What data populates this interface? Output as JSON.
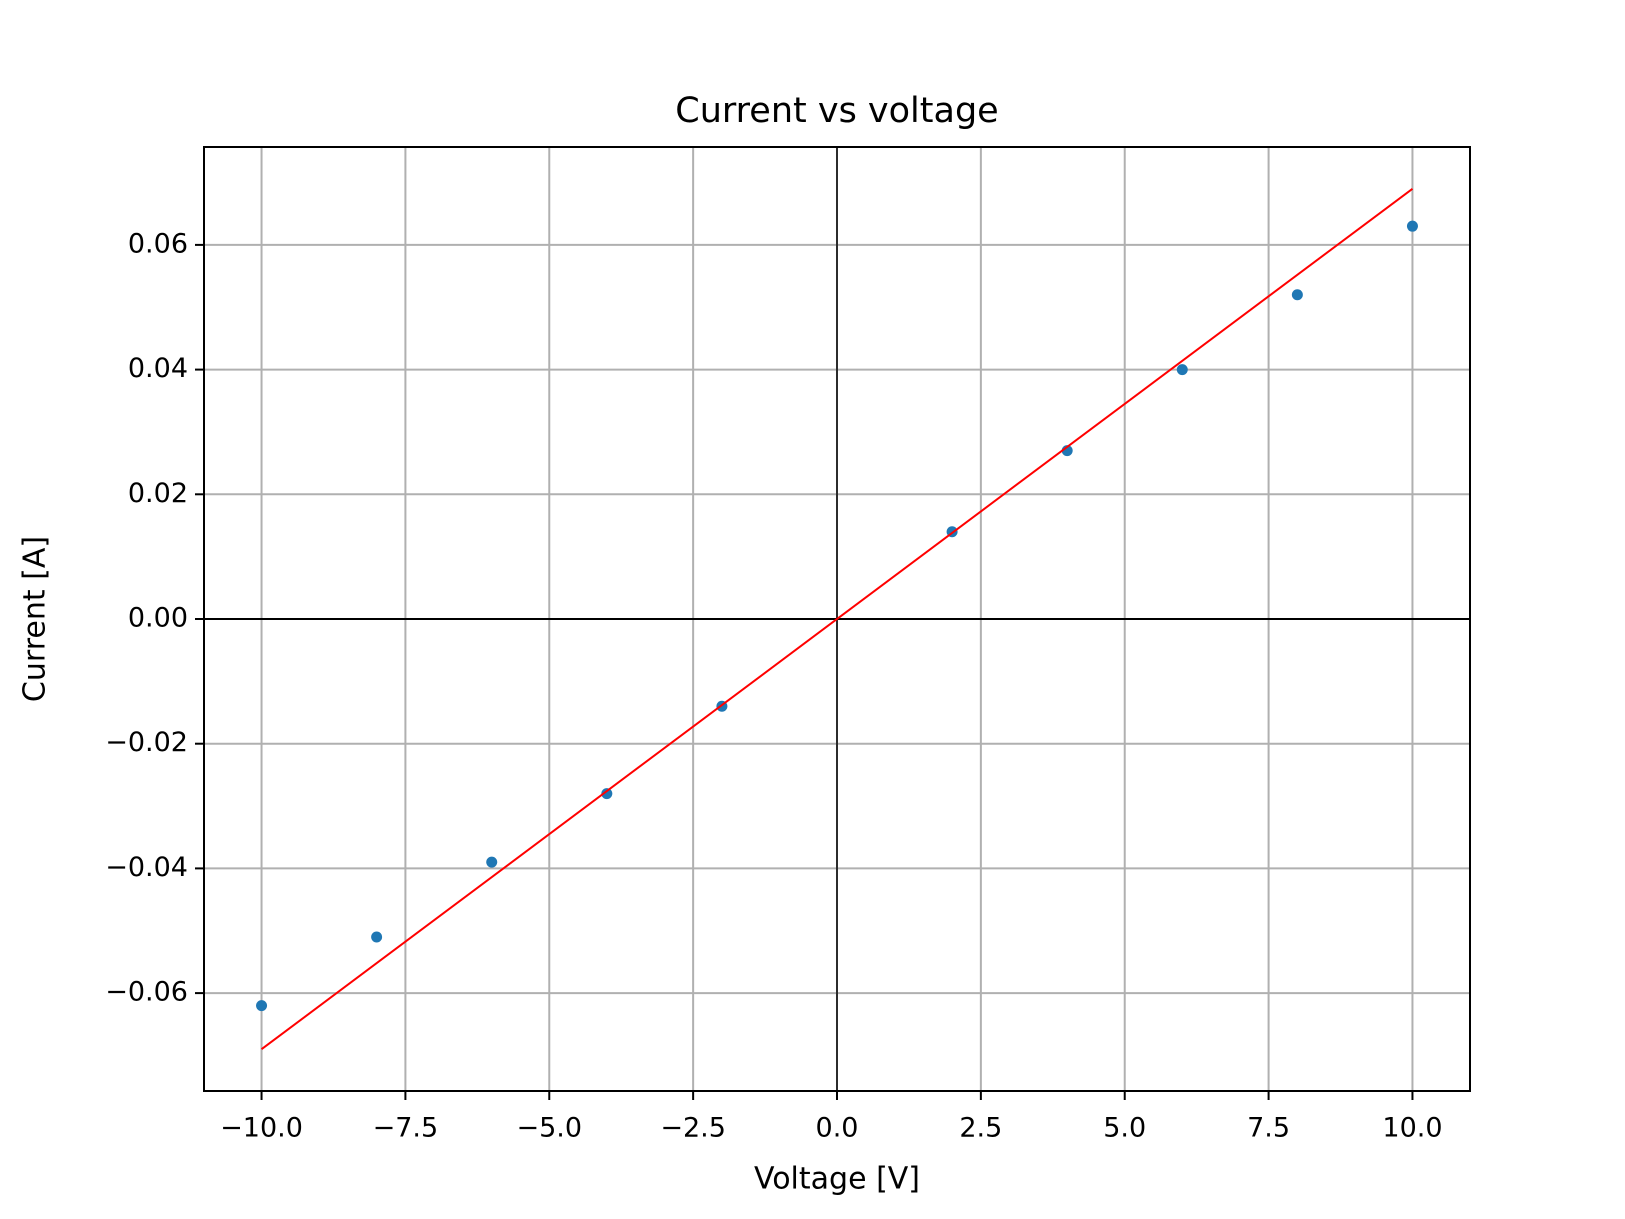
{
  "chart_data": {
    "type": "scatter",
    "title": "Current vs voltage",
    "x_label": "Voltage [V]",
    "y_label": "Current [A]",
    "series": [
      {
        "style": "points",
        "color": "#1f77b4",
        "x": [
          -10,
          -8,
          -6,
          -4,
          -2,
          2,
          4,
          6,
          8,
          10
        ],
        "values": [
          -0.062,
          -0.051,
          -0.039,
          -0.028,
          -0.014,
          0.014,
          0.027,
          0.04,
          0.052,
          0.063
        ]
      },
      {
        "style": "line",
        "color": "#ff0000",
        "x": [
          -10,
          10
        ],
        "values": [
          -0.069,
          0.069
        ]
      }
    ],
    "xlim": [
      -11,
      11
    ],
    "ylim": [
      -0.0757,
      0.0757
    ],
    "xticks": [
      {
        "value": -10,
        "label": "−10.0"
      },
      {
        "value": -7.5,
        "label": "−7.5"
      },
      {
        "value": -5,
        "label": "−5.0"
      },
      {
        "value": -2.5,
        "label": "−2.5"
      },
      {
        "value": 0,
        "label": "0.0"
      },
      2.5,
      {
        "value": 5,
        "label": "5.0"
      },
      7.5,
      {
        "value": 10,
        "label": "10.0"
      }
    ],
    "yticks": [
      {
        "value": -0.06,
        "label": "−0.06"
      },
      {
        "value": -0.04,
        "label": "−0.04"
      },
      {
        "value": -0.02,
        "label": "−0.02"
      },
      {
        "value": 0,
        "label": "0.00"
      },
      0.02,
      0.04,
      0.06
    ],
    "grid": true,
    "zero_lines": true
  }
}
